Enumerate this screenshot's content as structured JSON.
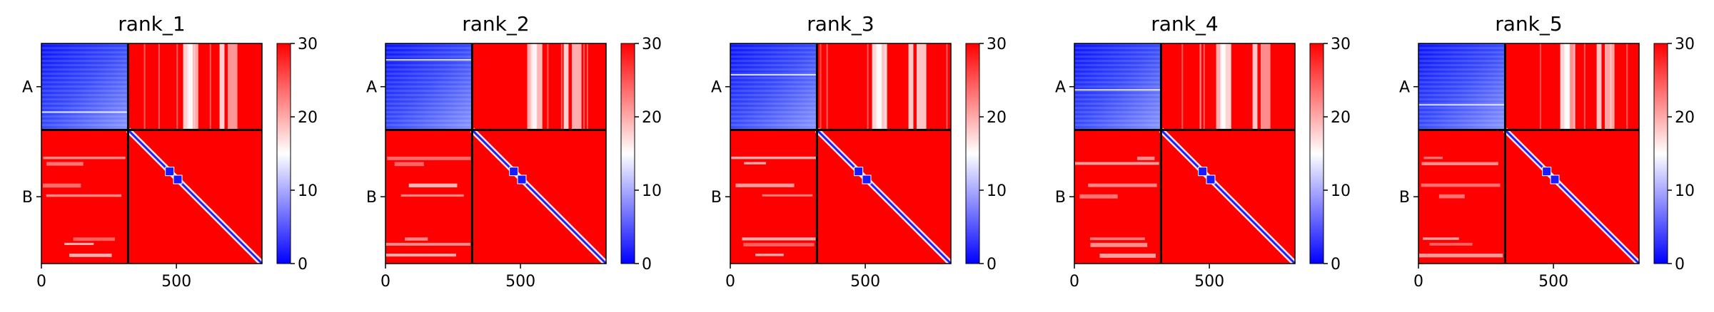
{
  "chart_data": {
    "type": "heatmap",
    "colormap": {
      "name": "bwr",
      "stops": [
        "#0000ff",
        "#ffffff",
        "#ff0000"
      ],
      "vmin": 0,
      "vmax": 30,
      "colorbar_ticks": [
        "0",
        "10",
        "20",
        "30"
      ]
    },
    "x_axis": {
      "range": [
        0,
        817
      ],
      "ticks": [
        "0",
        "500"
      ]
    },
    "chain_boundary": 321,
    "y_labels": [
      "A",
      "B"
    ],
    "panels": [
      {
        "title": "rank_1"
      },
      {
        "title": "rank_2"
      },
      {
        "title": "rank_3"
      },
      {
        "title": "rank_4"
      },
      {
        "title": "rank_5"
      }
    ]
  }
}
